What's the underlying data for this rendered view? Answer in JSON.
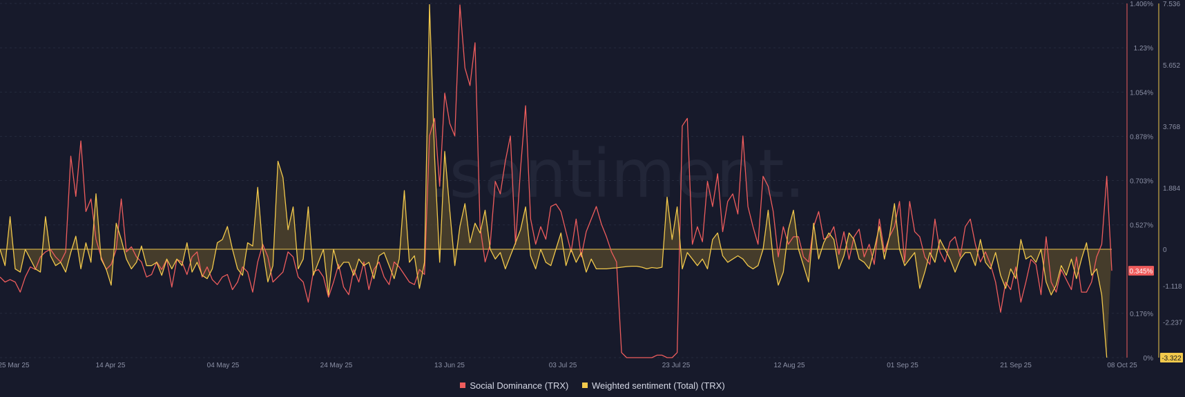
{
  "watermark": ".santiment.",
  "legend": [
    {
      "label": "Social Dominance (TRX)",
      "color": "#ef5d5d"
    },
    {
      "label": "Weighted sentiment (Total) (TRX)",
      "color": "#f2c94c"
    }
  ],
  "chart_data": {
    "type": "line",
    "x_ticks": [
      "25 Mar 25",
      "14 Apr 25",
      "04 May 25",
      "24 May 25",
      "13 Jun 25",
      "03 Jul 25",
      "23 Jul 25",
      "12 Aug 25",
      "01 Sep 25",
      "21 Sep 25",
      "08 Oct 25"
    ],
    "x_range": [
      "2025-03-25",
      "2025-10-08"
    ],
    "y_left": {
      "ticks": [
        "1.406%",
        "1.23%",
        "1.054%",
        "0.878%",
        "0.703%",
        "0.527%",
        "0.176%",
        "0%"
      ],
      "range": [
        0,
        1.406
      ],
      "unit": "%"
    },
    "y_right": {
      "ticks": [
        "7.536",
        "5.652",
        "3.768",
        "1.884",
        "0",
        "-1.118",
        "-2.237",
        "-3.322"
      ],
      "range": [
        -3.322,
        7.536
      ]
    },
    "current_values": {
      "social_dominance": "0.345%",
      "weighted_sentiment": "-3.322"
    },
    "series": [
      {
        "name": "Social Dominance (TRX)",
        "color": "#ef5d5d",
        "axis": "left",
        "values": [
          0.32,
          0.3,
          0.31,
          0.3,
          0.26,
          0.32,
          0.36,
          0.35,
          0.4,
          0.42,
          0.43,
          0.4,
          0.38,
          0.42,
          0.8,
          0.64,
          0.86,
          0.58,
          0.63,
          0.47,
          0.4,
          0.35,
          0.37,
          0.43,
          0.63,
          0.42,
          0.44,
          0.4,
          0.38,
          0.32,
          0.33,
          0.38,
          0.35,
          0.39,
          0.28,
          0.39,
          0.38,
          0.33,
          0.4,
          0.42,
          0.32,
          0.36,
          0.31,
          0.29,
          0.32,
          0.33,
          0.27,
          0.3,
          0.36,
          0.34,
          0.26,
          0.38,
          0.45,
          0.4,
          0.3,
          0.32,
          0.34,
          0.42,
          0.4,
          0.32,
          0.3,
          0.22,
          0.34,
          0.35,
          0.32,
          0.24,
          0.3,
          0.37,
          0.28,
          0.25,
          0.35,
          0.3,
          0.38,
          0.27,
          0.35,
          0.38,
          0.32,
          0.29,
          0.38,
          0.36,
          0.33,
          0.3,
          0.29,
          0.35,
          0.33,
          0.88,
          0.95,
          0.68,
          1.05,
          0.93,
          0.88,
          1.4,
          1.15,
          1.08,
          1.25,
          0.52,
          0.38,
          0.45,
          0.7,
          0.65,
          0.78,
          0.88,
          0.45,
          0.75,
          1.0,
          0.55,
          0.45,
          0.52,
          0.47,
          0.6,
          0.61,
          0.58,
          0.5,
          0.42,
          0.55,
          0.4,
          0.5,
          0.55,
          0.6,
          0.53,
          0.48,
          0.42,
          0.38,
          0.02,
          0.0,
          0.0,
          0.0,
          0.0,
          0.0,
          0.0,
          0.01,
          0.01,
          0.0,
          0.0,
          0.02,
          0.92,
          0.95,
          0.45,
          0.52,
          0.46,
          0.7,
          0.6,
          0.73,
          0.5,
          0.62,
          0.65,
          0.57,
          0.88,
          0.6,
          0.52,
          0.45,
          0.72,
          0.68,
          0.58,
          0.4,
          0.52,
          0.45,
          0.48,
          0.48,
          0.4,
          0.38,
          0.52,
          0.58,
          0.47,
          0.48,
          0.52,
          0.41,
          0.5,
          0.39,
          0.48,
          0.51,
          0.4,
          0.45,
          0.37,
          0.55,
          0.42,
          0.48,
          0.52,
          0.62,
          0.38,
          0.62,
          0.5,
          0.48,
          0.4,
          0.37,
          0.55,
          0.42,
          0.38,
          0.46,
          0.48,
          0.4,
          0.52,
          0.55,
          0.45,
          0.38,
          0.42,
          0.37,
          0.3,
          0.18,
          0.3,
          0.27,
          0.36,
          0.22,
          0.3,
          0.39,
          0.37,
          0.25,
          0.48,
          0.3,
          0.26,
          0.35,
          0.31,
          0.27,
          0.4,
          0.26,
          0.26,
          0.3,
          0.4,
          0.45,
          0.72,
          0.345
        ]
      },
      {
        "name": "Weighted sentiment (Total) (TRX)",
        "color": "#f2c94c",
        "axis": "right",
        "values": [
          0.0,
          -0.5,
          1.0,
          -0.6,
          -0.7,
          0.0,
          -0.3,
          -0.6,
          -0.7,
          1.0,
          -0.2,
          -0.5,
          -0.4,
          -0.7,
          -0.1,
          0.4,
          -0.6,
          0.2,
          -0.4,
          1.7,
          -0.3,
          -0.6,
          -1.1,
          0.8,
          0.3,
          -0.3,
          -0.6,
          -0.4,
          0.1,
          -0.5,
          -0.5,
          -0.4,
          -0.8,
          -0.3,
          -0.6,
          -0.3,
          -0.5,
          0.2,
          -0.7,
          -0.4,
          -0.8,
          -0.9,
          -0.6,
          0.2,
          0.3,
          0.7,
          0.0,
          -0.6,
          -0.8,
          0.2,
          0.1,
          1.9,
          0.0,
          -1.0,
          -0.5,
          2.7,
          2.2,
          0.6,
          1.3,
          -0.6,
          -0.3,
          1.3,
          -0.8,
          -0.4,
          0.0,
          -1.4,
          0.0,
          -0.6,
          -0.4,
          -0.4,
          -0.8,
          -0.3,
          -0.5,
          -0.4,
          -0.9,
          -0.2,
          -0.1,
          -0.5,
          -0.9,
          -0.3,
          1.8,
          -0.4,
          -0.2,
          -1.2,
          -0.4,
          7.5,
          2.8,
          -0.4,
          3.0,
          1.2,
          -0.5,
          0.7,
          1.4,
          0.2,
          0.8,
          0.5,
          1.2,
          0.0,
          -0.3,
          -0.1,
          -0.6,
          -0.2,
          0.2,
          0.6,
          1.3,
          -0.2,
          -0.6,
          0.0,
          -0.4,
          -0.5,
          0.0,
          0.5,
          -0.5,
          0.0,
          -0.4,
          -0.1,
          -0.7,
          -0.3,
          -0.6,
          -0.6,
          -0.6,
          -0.58,
          -0.57,
          -0.55,
          -0.53,
          -0.52,
          -0.52,
          -0.55,
          -0.6,
          -0.56,
          -0.58,
          -0.55,
          1.6,
          0.3,
          1.3,
          -0.6,
          -0.1,
          -0.3,
          -0.5,
          -0.3,
          -0.6,
          0.3,
          0.5,
          -0.2,
          -0.4,
          -0.3,
          -0.2,
          -0.3,
          -0.5,
          -0.6,
          -0.5,
          0.0,
          1.2,
          -0.3,
          -1.1,
          -0.7,
          0.6,
          1.2,
          0.0,
          -0.5,
          -1.0,
          0.8,
          -0.3,
          0.2,
          0.5,
          0.3,
          -0.6,
          -0.2,
          0.5,
          0.3,
          -0.3,
          -0.4,
          -0.6,
          0.0,
          0.7,
          -0.3,
          0.4,
          1.4,
          0.0,
          -0.5,
          -0.3,
          -0.1,
          -1.2,
          -0.7,
          -0.1,
          -0.4,
          0.3,
          0.0,
          -0.3,
          -0.7,
          -0.3,
          -0.1,
          -0.1,
          -0.5,
          0.3,
          -0.4,
          -0.6,
          -0.1,
          -0.8,
          -1.2,
          -0.6,
          -0.9,
          0.3,
          -0.3,
          -0.2,
          -0.4,
          0.0,
          -1.0,
          -1.4,
          -1.1,
          -0.5,
          -0.8,
          -0.3,
          -0.9,
          -0.3,
          0.2,
          -0.8,
          -0.6,
          -1.4,
          -3.32
        ]
      }
    ]
  }
}
